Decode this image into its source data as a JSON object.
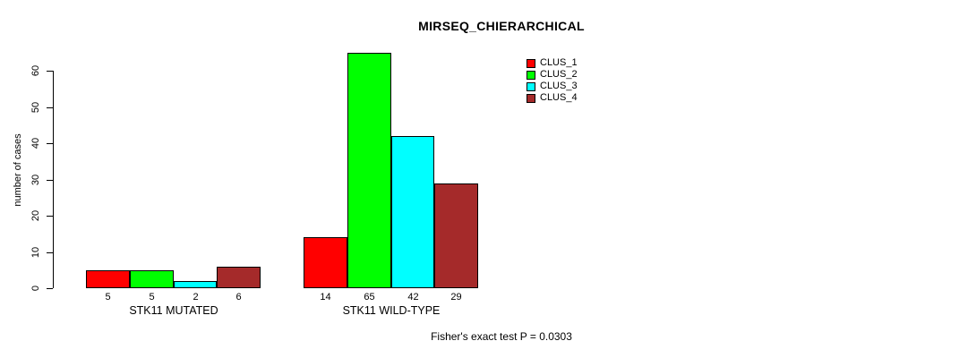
{
  "chart_data": {
    "type": "bar",
    "title": "MIRSEQ_CHIERARCHICAL",
    "ylabel": "number of cases",
    "xlabel": "",
    "groups": [
      "STK11 MUTATED",
      "STK11 WILD-TYPE"
    ],
    "series": [
      {
        "name": "CLUS_1",
        "color": "#FF0000",
        "values": [
          5,
          14
        ]
      },
      {
        "name": "CLUS_2",
        "color": "#00FF00",
        "values": [
          5,
          65
        ]
      },
      {
        "name": "CLUS_3",
        "color": "#00FFFF",
        "values": [
          2,
          42
        ]
      },
      {
        "name": "CLUS_4",
        "color": "#A52A2A",
        "values": [
          6,
          29
        ]
      }
    ],
    "bar_value_labels": [
      [
        5,
        5,
        2,
        6
      ],
      [
        14,
        65,
        42,
        29
      ]
    ],
    "yticks": [
      0,
      10,
      20,
      30,
      40,
      50,
      60
    ],
    "ylim": [
      0,
      65
    ],
    "grid": false,
    "legend_position": "top-right",
    "annotation": "Fisher's exact test P = 0.0303",
    "colors": {
      "background": "#FFFFFF",
      "text": "#000000",
      "axis": "#000000",
      "bar_border": "#000000"
    }
  }
}
